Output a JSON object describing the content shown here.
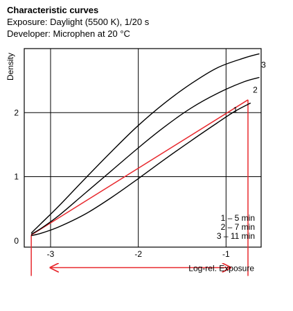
{
  "chart_data": {
    "type": "line",
    "title": "Characteristic curves",
    "subtitle_lines": [
      "Exposure: Daylight (5500 K), 1/20 s",
      "Developer:  Microphen at 20 °C"
    ],
    "xlabel": "Log-rel. Exposure",
    "ylabel": "Density",
    "xlim": [
      -3.3,
      -0.6
    ],
    "ylim": [
      -0.1,
      3.0
    ],
    "x_ticks": [
      "-3",
      "-2",
      "-1"
    ],
    "y_ticks": [
      "0",
      "1",
      "2"
    ],
    "grid": true,
    "legend": {
      "placement": "bottom-right",
      "entries": [
        "1 – 5 min",
        "2 – 7 min",
        "3 – 11 min"
      ]
    },
    "series": [
      {
        "name": "3",
        "x": [
          -3.22,
          -3.1,
          -2.9,
          -2.6,
          -2.3,
          -2.0,
          -1.7,
          -1.4,
          -1.1,
          -0.8,
          -0.62
        ],
        "y": [
          0.12,
          0.28,
          0.55,
          0.98,
          1.4,
          1.8,
          2.15,
          2.45,
          2.7,
          2.85,
          2.92
        ]
      },
      {
        "name": "2",
        "x": [
          -3.22,
          -3.1,
          -2.9,
          -2.6,
          -2.3,
          -2.0,
          -1.7,
          -1.4,
          -1.1,
          -0.8,
          -0.62
        ],
        "y": [
          0.1,
          0.2,
          0.4,
          0.75,
          1.1,
          1.45,
          1.78,
          2.07,
          2.3,
          2.48,
          2.55
        ]
      },
      {
        "name": "1",
        "x": [
          -3.22,
          -3.1,
          -2.9,
          -2.6,
          -2.3,
          -2.0,
          -1.7,
          -1.4,
          -1.1,
          -0.9,
          -0.72
        ],
        "y": [
          0.08,
          0.12,
          0.22,
          0.42,
          0.68,
          0.97,
          1.27,
          1.56,
          1.84,
          2.02,
          2.15
        ]
      }
    ],
    "annotations": [
      {
        "type": "gradient-line",
        "x": [
          -3.22,
          -0.75
        ],
        "y": [
          0.09,
          2.2
        ]
      },
      {
        "type": "vertical-line",
        "x": -0.75,
        "y": [
          2.2,
          -0.55
        ]
      },
      {
        "type": "vertical-line",
        "x": -3.22,
        "y": [
          0.09,
          -0.55
        ]
      },
      {
        "type": "double-arrow",
        "x": [
          -3.0,
          -0.95
        ],
        "y": -0.42
      }
    ],
    "colors": {
      "curves": "#000000",
      "annotation": "#e8282d",
      "grid": "#000000"
    }
  }
}
